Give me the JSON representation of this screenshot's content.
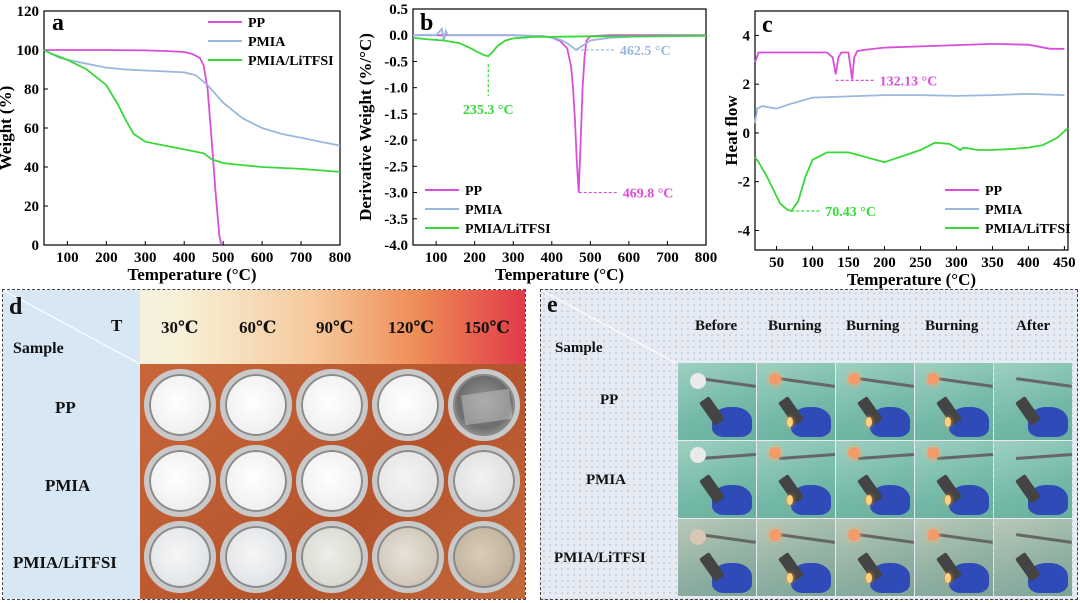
{
  "colors": {
    "PP": "#d94fd8",
    "PMIA": "#9ab7dc",
    "PMIA_LiTFSI": "#38d838",
    "annot_c_pmia": "#9fd6f0"
  },
  "chart_data": [
    {
      "panel": "a",
      "type": "line",
      "xlabel": "Temperature (°C)",
      "ylabel": "Weight (%)",
      "xlim": [
        40,
        800
      ],
      "ylim": [
        0,
        120
      ],
      "xticks": [
        100,
        200,
        300,
        400,
        500,
        600,
        700,
        800
      ],
      "yticks": [
        0,
        20,
        40,
        60,
        80,
        100,
        120
      ],
      "legend": "top-right",
      "series": [
        {
          "name": "PP",
          "x": [
            40,
            100,
            200,
            300,
            350,
            400,
            420,
            440,
            450,
            460,
            470,
            480,
            490,
            495
          ],
          "y": [
            100,
            100,
            100,
            99.8,
            99.5,
            99,
            98,
            96,
            92,
            80,
            55,
            28,
            5,
            0
          ]
        },
        {
          "name": "PMIA",
          "x": [
            40,
            60,
            80,
            100,
            150,
            200,
            250,
            300,
            350,
            400,
            430,
            460,
            500,
            550,
            600,
            650,
            700,
            750,
            800
          ],
          "y": [
            100,
            98,
            96,
            95,
            93,
            91,
            90,
            89.5,
            89,
            88.5,
            87,
            82,
            73,
            65,
            60,
            57,
            55,
            53,
            51
          ]
        },
        {
          "name": "PMIA/LiTFSI",
          "x": [
            40,
            60,
            100,
            150,
            200,
            230,
            250,
            270,
            300,
            350,
            400,
            450,
            470,
            500,
            550,
            600,
            700,
            800
          ],
          "y": [
            100,
            98,
            95,
            90,
            82,
            72,
            64,
            57,
            53,
            51,
            49,
            47,
            44,
            42,
            41,
            40,
            39,
            37.5
          ]
        }
      ]
    },
    {
      "panel": "b",
      "type": "line",
      "xlabel": "Temperature (°C)",
      "ylabel": "Derivative Weight (%/°C)",
      "xlim": [
        40,
        800
      ],
      "ylim": [
        -4.0,
        0.5
      ],
      "xticks": [
        100,
        200,
        300,
        400,
        500,
        600,
        700,
        800
      ],
      "yticks": [
        -4.0,
        -3.5,
        -3.0,
        -2.5,
        -2.0,
        -1.5,
        -1.0,
        -0.5,
        0.0,
        0.5
      ],
      "legend": "bottom-left",
      "annotations": [
        {
          "text": "462.5 °C",
          "series": "PMIA"
        },
        {
          "text": "469.8 °C",
          "series": "PP"
        },
        {
          "text": "235.3 °C",
          "series": "PMIA/LiTFSI"
        }
      ],
      "series": [
        {
          "name": "PP",
          "x": [
            40,
            300,
            380,
            400,
            420,
            440,
            450,
            455,
            460,
            465,
            469.8,
            475,
            480,
            485,
            490,
            500,
            550,
            800
          ],
          "y": [
            0,
            0,
            -0.02,
            -0.05,
            -0.1,
            -0.25,
            -0.6,
            -1.0,
            -1.6,
            -2.4,
            -3.0,
            -2.0,
            -1.0,
            -0.4,
            -0.1,
            -0.02,
            0,
            0
          ]
        },
        {
          "name": "PMIA",
          "x": [
            40,
            100,
            115,
            120,
            125,
            130,
            200,
            300,
            380,
            420,
            440,
            462.5,
            480,
            500,
            550,
            600,
            700,
            800
          ],
          "y": [
            0,
            0,
            0.12,
            -0.12,
            0.08,
            0,
            0,
            0,
            -0.02,
            -0.08,
            -0.15,
            -0.28,
            -0.2,
            -0.1,
            -0.05,
            -0.03,
            -0.02,
            -0.01
          ]
        },
        {
          "name": "PMIA/LiTFSI",
          "x": [
            40,
            80,
            120,
            160,
            190,
            210,
            225,
            235.3,
            245,
            260,
            280,
            300,
            350,
            400,
            500,
            600,
            800
          ],
          "y": [
            -0.05,
            -0.08,
            -0.1,
            -0.15,
            -0.25,
            -0.33,
            -0.38,
            -0.4,
            -0.33,
            -0.2,
            -0.1,
            -0.06,
            -0.03,
            -0.03,
            -0.02,
            -0.02,
            -0.01
          ]
        }
      ]
    },
    {
      "panel": "c",
      "type": "line",
      "xlabel": "Temperature (°C)",
      "ylabel": "Heat flow",
      "xlim": [
        20,
        455
      ],
      "ylim": [
        -4.8,
        5
      ],
      "xticks": [
        50,
        100,
        150,
        200,
        250,
        300,
        350,
        400,
        450
      ],
      "yticks": [
        -4,
        -2,
        0,
        2,
        4
      ],
      "legend": "bottom-right",
      "annotations": [
        {
          "text": "132.13 °C",
          "series": "PP"
        },
        {
          "text": "70.43 °C",
          "series": "PMIA/LiTFSI"
        }
      ],
      "series": [
        {
          "name": "PP",
          "x": [
            20,
            25,
            40,
            60,
            100,
            120,
            128,
            132.13,
            136,
            140,
            150,
            155,
            158,
            162,
            170,
            200,
            250,
            300,
            350,
            400,
            430,
            450
          ],
          "y": [
            2.9,
            3.3,
            3.3,
            3.3,
            3.3,
            3.3,
            3.1,
            2.4,
            3.1,
            3.3,
            3.3,
            2.2,
            3.1,
            3.35,
            3.4,
            3.5,
            3.55,
            3.6,
            3.65,
            3.62,
            3.45,
            3.45
          ]
        },
        {
          "name": "PMIA",
          "x": [
            20,
            23,
            30,
            50,
            70,
            100,
            150,
            200,
            250,
            300,
            350,
            400,
            450
          ],
          "y": [
            0.4,
            1.0,
            1.1,
            1.0,
            1.2,
            1.45,
            1.5,
            1.55,
            1.55,
            1.52,
            1.55,
            1.6,
            1.55
          ]
        },
        {
          "name": "PMIA/LiTFSI",
          "x": [
            20,
            25,
            35,
            45,
            55,
            65,
            70.43,
            80,
            90,
            100,
            120,
            150,
            200,
            250,
            270,
            290,
            300,
            305,
            310,
            330,
            350,
            380,
            400,
            420,
            440,
            455
          ],
          "y": [
            -1,
            -1.2,
            -1.7,
            -2.3,
            -2.9,
            -3.15,
            -3.2,
            -2.8,
            -1.8,
            -1.1,
            -0.8,
            -0.8,
            -1.2,
            -0.7,
            -0.4,
            -0.45,
            -0.6,
            -0.7,
            -0.6,
            -0.7,
            -0.7,
            -0.65,
            -0.6,
            -0.5,
            -0.2,
            0.2
          ]
        }
      ]
    }
  ],
  "panel_d": {
    "label": "d",
    "corner_t": "T",
    "corner_sample": "Sample",
    "columns": [
      "30℃",
      "60℃",
      "90℃",
      "120℃",
      "150℃"
    ],
    "rows": [
      "PP",
      "PMIA",
      "PMIA/LiTFSI"
    ]
  },
  "panel_e": {
    "label": "e",
    "corner_sample": "Sample",
    "columns": [
      "Before",
      "Burning",
      "Burning",
      "Burning",
      "After"
    ],
    "rows": [
      "PP",
      "PMIA",
      "PMIA/LiTFSI"
    ]
  }
}
